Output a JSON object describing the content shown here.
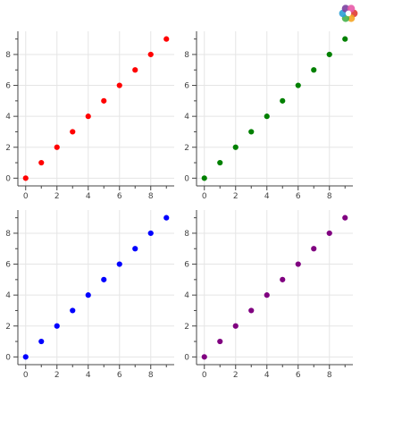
{
  "toolbar": {
    "logo_icon": "bokeh-logo-icon",
    "logo_colors": [
      "#e03b33",
      "#f5a524",
      "#46b34b",
      "#2ba0d6",
      "#7b3fa0",
      "#e85aa8"
    ]
  },
  "chart_data": [
    {
      "type": "scatter",
      "title": "",
      "xlabel": "",
      "ylabel": "",
      "xlim": [
        -0.5,
        9.5
      ],
      "ylim": [
        -0.5,
        9.5
      ],
      "grid": true,
      "color": "#ff0000",
      "x": [
        0,
        1,
        2,
        3,
        4,
        5,
        6,
        7,
        8,
        9
      ],
      "y": [
        0,
        1,
        2,
        3,
        4,
        5,
        6,
        7,
        8,
        9
      ],
      "xticks": [
        "0",
        "2",
        "4",
        "6",
        "8"
      ],
      "yticks": [
        "0",
        "2",
        "4",
        "6",
        "8"
      ]
    },
    {
      "type": "scatter",
      "title": "",
      "xlabel": "",
      "ylabel": "",
      "xlim": [
        -0.5,
        9.5
      ],
      "ylim": [
        -0.5,
        9.5
      ],
      "grid": true,
      "color": "#008000",
      "x": [
        0,
        1,
        2,
        3,
        4,
        5,
        6,
        7,
        8,
        9
      ],
      "y": [
        0,
        1,
        2,
        3,
        4,
        5,
        6,
        7,
        8,
        9
      ],
      "xticks": [
        "0",
        "2",
        "4",
        "6",
        "8"
      ],
      "yticks": [
        "0",
        "2",
        "4",
        "6",
        "8"
      ]
    },
    {
      "type": "scatter",
      "title": "",
      "xlabel": "",
      "ylabel": "",
      "xlim": [
        -0.5,
        9.5
      ],
      "ylim": [
        -0.5,
        9.5
      ],
      "grid": true,
      "color": "#0000ff",
      "x": [
        0,
        1,
        2,
        3,
        4,
        5,
        6,
        7,
        8,
        9
      ],
      "y": [
        0,
        1,
        2,
        3,
        4,
        5,
        6,
        7,
        8,
        9
      ],
      "xticks": [
        "0",
        "2",
        "4",
        "6",
        "8"
      ],
      "yticks": [
        "0",
        "2",
        "4",
        "6",
        "8"
      ]
    },
    {
      "type": "scatter",
      "title": "",
      "xlabel": "",
      "ylabel": "",
      "xlim": [
        -0.5,
        9.5
      ],
      "ylim": [
        -0.5,
        9.5
      ],
      "grid": true,
      "color": "#800080",
      "x": [
        0,
        1,
        2,
        3,
        4,
        5,
        6,
        7,
        8,
        9
      ],
      "y": [
        0,
        1,
        2,
        3,
        4,
        5,
        6,
        7,
        8,
        9
      ],
      "xticks": [
        "0",
        "2",
        "4",
        "6",
        "8"
      ],
      "yticks": [
        "0",
        "2",
        "4",
        "6",
        "8"
      ]
    }
  ]
}
